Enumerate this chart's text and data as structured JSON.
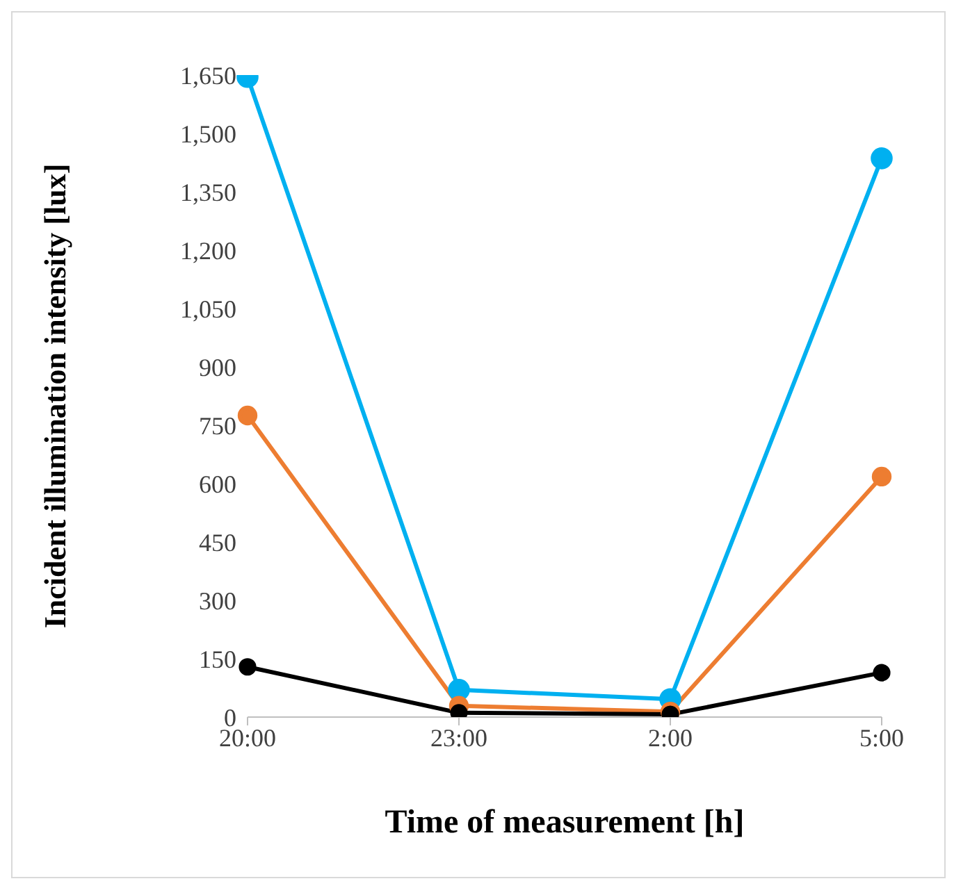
{
  "chart_data": {
    "type": "line",
    "xlabel": "Time of measurement [h]",
    "ylabel": "Incident illumination intensity [lux]",
    "categories": [
      "20:00",
      "23:00",
      "2:00",
      "5:00"
    ],
    "series": [
      {
        "color": "#00b0f0",
        "values": [
          1645,
          70,
          46,
          1436
        ]
      },
      {
        "color": "#ed7d31",
        "values": [
          775,
          29,
          14,
          618
        ]
      },
      {
        "color": "#000000",
        "values": [
          129,
          11,
          7,
          114
        ]
      }
    ],
    "ylim": [
      0,
      1650
    ],
    "yticks": [
      0,
      150,
      300,
      450,
      600,
      750,
      900,
      {
        "value": 1050,
        "label": "1,050"
      },
      {
        "value": 1200,
        "label": "1,200"
      },
      {
        "value": 1350,
        "label": "1,350"
      },
      {
        "value": 1500,
        "label": "1,500"
      },
      {
        "value": 1650,
        "label": "1,650"
      }
    ],
    "grid": false,
    "legend": false,
    "marker": "circle",
    "line_style": "solid"
  }
}
